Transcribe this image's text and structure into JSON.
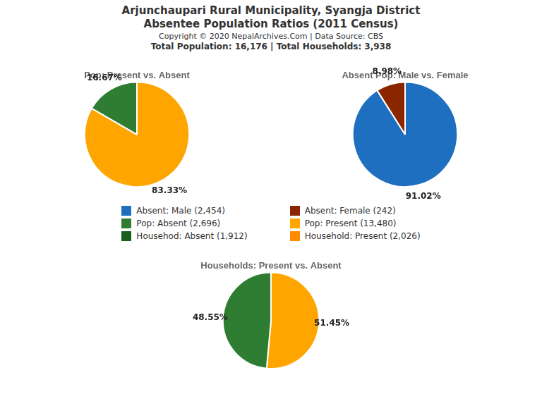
{
  "title": [
    "Arjunchaupari Rural Municipality, Syangja District",
    "Absentee Population Ratios (2011 Census)"
  ],
  "subtitle": [
    "Copyright © 2020 NepalArchives.Com | Data Source: CBS",
    "Total Population: 16,176 | Total Households: 3,938"
  ],
  "annotations": [
    {
      "text": "Absent: Male (2,454)",
      "color": "#1E6FBF"
    },
    {
      "text": "Pop: Absent (2,696)",
      "color": "#2E7D32"
    },
    {
      "text": "Househod: Absent (1,912)",
      "color": "#1B5E20"
    },
    {
      "text": "Absent: Female (242)",
      "color": "#8B2500"
    },
    {
      "text": "Pop: Present (13,480)",
      "color": "#FFA500"
    },
    {
      "text": "Household: Present (2,026)",
      "color": "#FF8C00"
    }
  ],
  "chart_data": [
    {
      "type": "pie",
      "title": "Pop: Present vs. Absent",
      "values": [
        83.33,
        16.67
      ],
      "value_labels": [
        "83.33%",
        "16.67%"
      ],
      "colors": [
        "#FFA500",
        "#2E7D32"
      ],
      "data_labels": true
    },
    {
      "type": "pie",
      "title": "Absent Pop: Male vs. Female",
      "values": [
        91.02,
        8.98
      ],
      "value_labels": [
        "91.02%",
        "8.98%"
      ],
      "colors": [
        "#1E6FBF",
        "#8B2500"
      ],
      "data_labels": true
    },
    {
      "type": "pie",
      "title": "Households: Present vs. Absent",
      "values": [
        51.45,
        48.55
      ],
      "value_labels": [
        "51.45%",
        "48.55%"
      ],
      "colors": [
        "#FFA500",
        "#2E7D32"
      ],
      "data_labels": true
    }
  ]
}
